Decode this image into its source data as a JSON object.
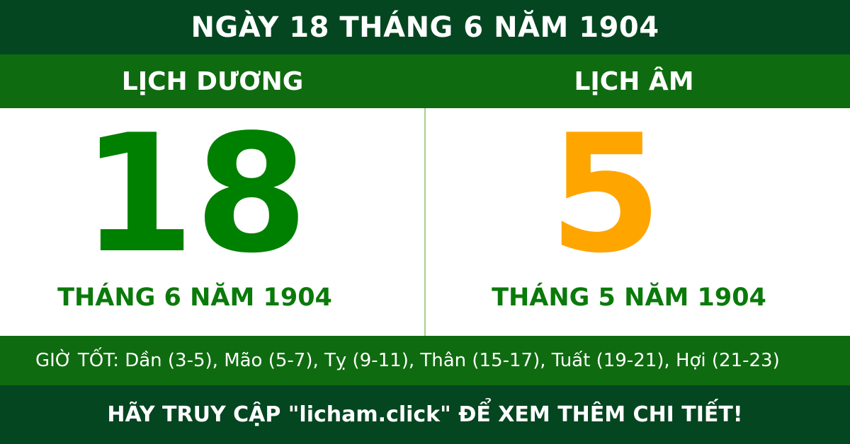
{
  "header": {
    "title": "NGÀY 18 THÁNG 6 NĂM 1904"
  },
  "solar": {
    "label": "LỊCH DƯƠNG",
    "day": "18",
    "month_year": "THÁNG 6 NĂM 1904"
  },
  "lunar": {
    "label": "LỊCH ÂM",
    "day": "5",
    "month_year": "THÁNG 5 NĂM 1904"
  },
  "good_hours": "GIỜ TỐT: Dần (3-5), Mão (5-7), Tỵ (9-11), Thân (15-17), Tuất (19-21), Hợi (21-23)",
  "footer": {
    "cta": "HÃY TRUY CẬP \"licham.click\" ĐỂ XEM THÊM CHI TIẾT!"
  },
  "colors": {
    "dark_green": "#034620",
    "green": "#0f6b10",
    "solar_number": "#008000",
    "lunar_number": "#ffa500"
  }
}
